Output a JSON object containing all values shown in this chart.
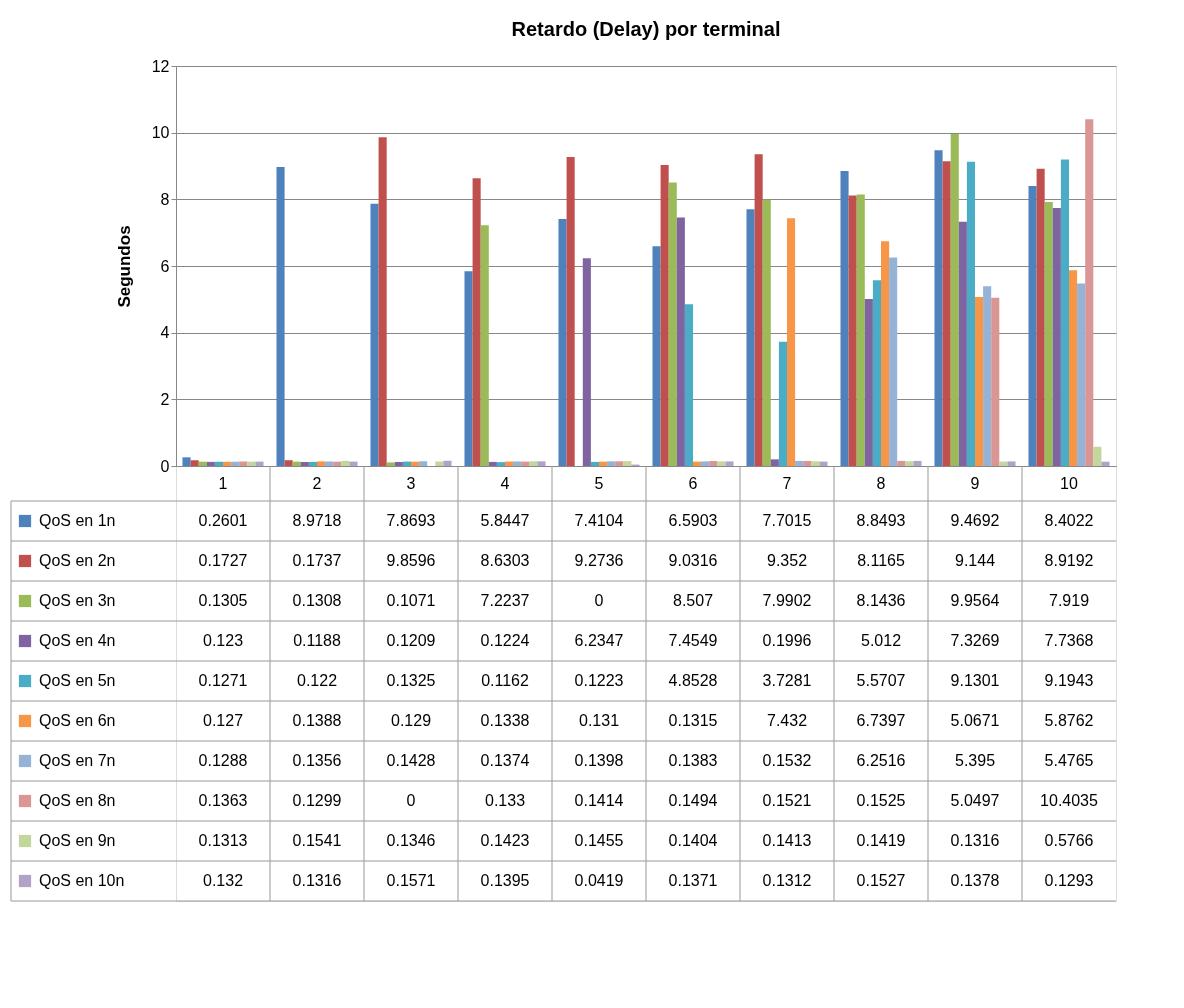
{
  "chart_data": {
    "type": "bar",
    "title": "Retardo (Delay) por terminal",
    "ylabel": "Segundos",
    "categories": [
      "1",
      "2",
      "3",
      "4",
      "5",
      "6",
      "7",
      "8",
      "9",
      "10"
    ],
    "series": [
      {
        "name": "QoS en 1n",
        "color": "#4f81bd",
        "values": [
          0.2601,
          8.9718,
          7.8693,
          5.8447,
          7.4104,
          6.5903,
          7.7015,
          8.8493,
          9.4692,
          8.4022
        ]
      },
      {
        "name": "QoS en 2n",
        "color": "#c0504d",
        "values": [
          0.1727,
          0.1737,
          9.8596,
          8.6303,
          9.2736,
          9.0316,
          9.352,
          8.1165,
          9.144,
          8.9192
        ]
      },
      {
        "name": "QoS en 3n",
        "color": "#9bbb59",
        "values": [
          0.1305,
          0.1308,
          0.1071,
          7.2237,
          0,
          8.507,
          7.9902,
          8.1436,
          9.9564,
          7.919
        ]
      },
      {
        "name": "QoS en 4n",
        "color": "#8064a2",
        "values": [
          0.123,
          0.1188,
          0.1209,
          0.1224,
          6.2347,
          7.4549,
          0.1996,
          5.012,
          7.3269,
          7.7368
        ]
      },
      {
        "name": "QoS en 5n",
        "color": "#4bacc6",
        "values": [
          0.1271,
          0.122,
          0.1325,
          0.1162,
          0.1223,
          4.8528,
          3.7281,
          5.5707,
          9.1301,
          9.1943
        ]
      },
      {
        "name": "QoS en 6n",
        "color": "#f79646",
        "values": [
          0.127,
          0.1388,
          0.129,
          0.1338,
          0.131,
          0.1315,
          7.432,
          6.7397,
          5.0671,
          5.8762
        ]
      },
      {
        "name": "QoS en 7n",
        "color": "#95b3d7",
        "values": [
          0.1288,
          0.1356,
          0.1428,
          0.1374,
          0.1398,
          0.1383,
          0.1532,
          6.2516,
          5.395,
          5.4765
        ]
      },
      {
        "name": "QoS en 8n",
        "color": "#d99694",
        "values": [
          0.1363,
          0.1299,
          0,
          0.133,
          0.1414,
          0.1494,
          0.1521,
          0.1525,
          5.0497,
          10.4035
        ]
      },
      {
        "name": "QoS en 9n",
        "color": "#c3d69b",
        "values": [
          0.1313,
          0.1541,
          0.1346,
          0.1423,
          0.1455,
          0.1404,
          0.1413,
          0.1419,
          0.1316,
          0.5766
        ]
      },
      {
        "name": "QoS en 10n",
        "color": "#b2a2c7",
        "values": [
          0.132,
          0.1316,
          0.1571,
          0.1395,
          0.0419,
          0.1371,
          0.1312,
          0.1527,
          0.1378,
          0.1293
        ]
      }
    ],
    "ylim": [
      0,
      12
    ],
    "yticks": [
      0,
      2,
      4,
      6,
      8,
      10,
      12
    ],
    "grid": "y",
    "legend": "bottom",
    "data_labels": true
  }
}
